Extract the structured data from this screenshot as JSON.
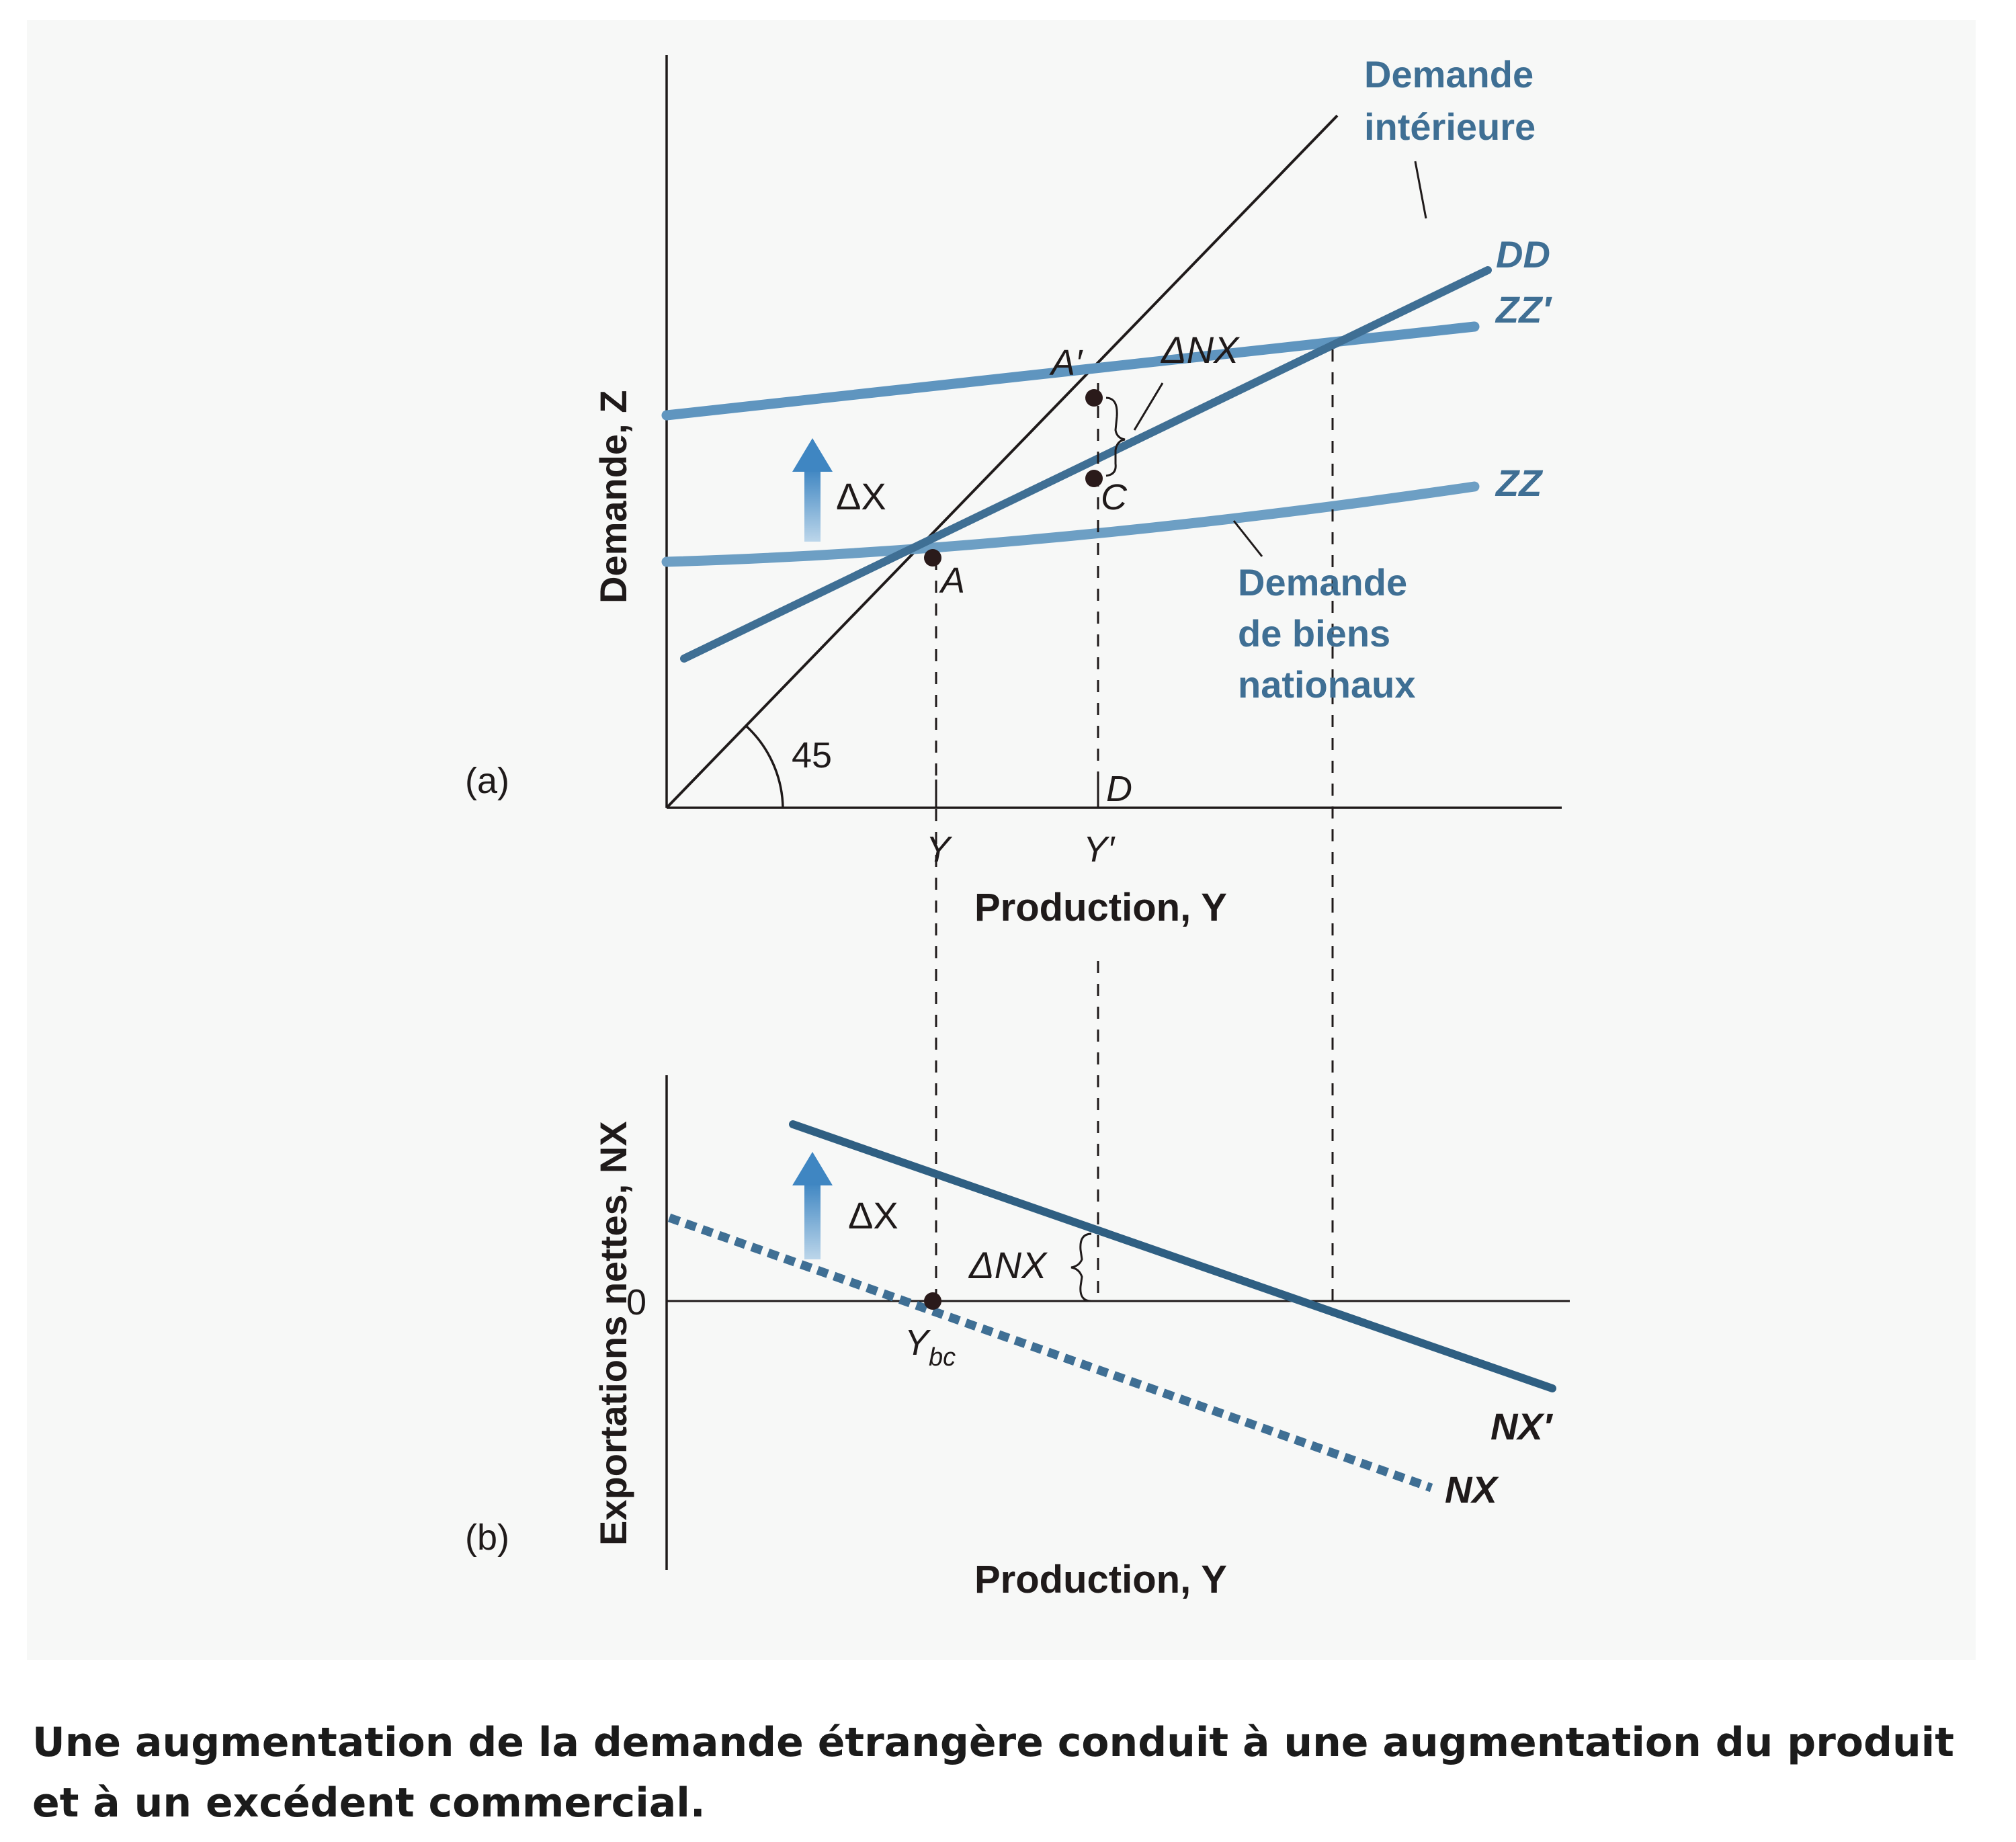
{
  "chart_data": [
    {
      "panel": "(a)",
      "type": "line",
      "ylabel": "Demande, Z",
      "xlabel": "Production, Y",
      "ticks_x": [
        "Y",
        "Y′"
      ],
      "series_labels": {
        "domestic_demand": [
          "Demande",
          "intérieure"
        ],
        "DD": "DD",
        "ZZ_prime": "ZZ′",
        "ZZ": "ZZ",
        "goods_demand": [
          "Demande",
          "de biens",
          "nationaux"
        ]
      },
      "points": {
        "A": "A",
        "A_prime": "A′",
        "C": "C",
        "D": "D"
      },
      "annotations": {
        "delta_x": "ΔX",
        "delta_nx": "ΔNX",
        "angle": "45"
      }
    },
    {
      "panel": "(b)",
      "type": "line",
      "ylabel": "Exportations nettes, NX",
      "xlabel": "Production, Y",
      "zero_label": "0",
      "ybc_main": "Y",
      "ybc_sub": "bc",
      "series": [
        {
          "name": "NX′",
          "style": "solid"
        },
        {
          "name": "NX",
          "style": "dashed"
        }
      ],
      "annotations": {
        "delta_x": "ΔX",
        "delta_nx": "ΔNX"
      }
    }
  ],
  "caption": "Une augmentation de la demande étrangère conduit à une augmentation du produit et à un excédent commercial.",
  "colors": {
    "curve": "#3f6f94",
    "curve_light": "#6d9fc4",
    "arrow": "#4f93c9",
    "ink": "#1f1a1a"
  }
}
